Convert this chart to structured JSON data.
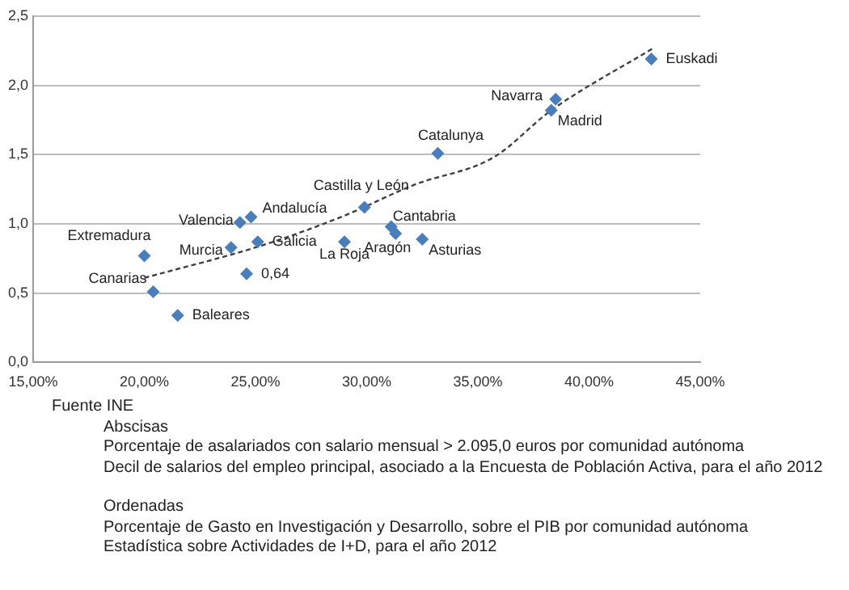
{
  "chart_data": {
    "type": "scatter",
    "xlim": [
      15,
      45
    ],
    "xticks": [
      {
        "value": 15,
        "label": "15,00%"
      },
      {
        "value": 20,
        "label": "20,00%"
      },
      {
        "value": 25,
        "label": "25,00%"
      },
      {
        "value": 30,
        "label": "30,00%"
      },
      {
        "value": 35,
        "label": "35,00%"
      },
      {
        "value": 40,
        "label": "40,00%"
      },
      {
        "value": 45,
        "label": "45,00%"
      }
    ],
    "ylim": [
      0,
      2.5
    ],
    "yticks": [
      {
        "value": 0,
        "label": "0,0"
      },
      {
        "value": 0.5,
        "label": "0,5"
      },
      {
        "value": 1,
        "label": "1,0"
      },
      {
        "value": 1.5,
        "label": "1,5"
      },
      {
        "value": 2,
        "label": "2,0"
      },
      {
        "value": 2.5,
        "label": "2,5"
      }
    ],
    "grid": "y",
    "marker": "diamond",
    "series": [
      {
        "type": "scatter",
        "color": "#4a7ebb",
        "x": [
          20.0,
          20.4,
          21.5,
          23.9,
          24.3,
          24.8,
          24.6,
          25.1,
          29.0,
          29.9,
          31.1,
          31.3,
          32.5,
          33.2,
          38.5,
          38.3,
          42.8
        ],
        "values": [
          0.77,
          0.51,
          0.34,
          0.83,
          1.01,
          1.05,
          0.64,
          0.87,
          0.87,
          1.12,
          0.98,
          0.93,
          0.89,
          1.51,
          1.9,
          1.82,
          2.19
        ]
      },
      {
        "type": "line",
        "color": "#404040",
        "line_style": "dashed",
        "marker": "none",
        "x": [
          20.0,
          25.4,
          29.0,
          32.1,
          35.7,
          38.3,
          42.9
        ],
        "values": [
          0.61,
          0.85,
          1.06,
          1.28,
          1.48,
          1.82,
          2.27
        ]
      }
    ],
    "annotations": [
      {
        "text": "Extremadura",
        "x": 20.0,
        "y": 0.77
      },
      {
        "text": "Canarias",
        "x": 20.4,
        "y": 0.51
      },
      {
        "text": "Baleares",
        "x": 21.5,
        "y": 0.34
      },
      {
        "text": "Murcia",
        "x": 23.9,
        "y": 0.83
      },
      {
        "text": "Valencia",
        "x": 24.3,
        "y": 1.01
      },
      {
        "text": "Andalucía",
        "x": 24.8,
        "y": 1.05
      },
      {
        "text": "0,64",
        "x": 24.6,
        "y": 0.64
      },
      {
        "text": "Galicia",
        "x": 25.1,
        "y": 0.87
      },
      {
        "text": "La Roja",
        "x": 29.0,
        "y": 0.87
      },
      {
        "text": "Castilla y León",
        "x": 29.9,
        "y": 1.12
      },
      {
        "text": "Cantabria",
        "x": 31.1,
        "y": 0.98
      },
      {
        "text": "Aragón",
        "x": 31.3,
        "y": 0.93
      },
      {
        "text": "Asturias",
        "x": 32.5,
        "y": 0.89
      },
      {
        "text": "Catalunya",
        "x": 33.2,
        "y": 1.51
      },
      {
        "text": "Navarra",
        "x": 38.5,
        "y": 1.9
      },
      {
        "text": "Madrid",
        "x": 38.3,
        "y": 1.82
      },
      {
        "text": "Euskadi",
        "x": 42.8,
        "y": 2.19
      },
      "Fuente INE",
      "Abscisas",
      "Porcentaje de asalariados con salario mensual > 2.095,0 euros por comunidad autónoma",
      "Decil de salarios del empleo principal, asociado a la Encuesta de Población Activa, para el año 2012",
      "Ordenadas",
      "Porcentaje de Gasto en Investigación y Desarrollo, sobre el PIB por comunidad autónoma",
      "Estadística sobre Actividades de I+D, para el año 2012"
    ]
  }
}
